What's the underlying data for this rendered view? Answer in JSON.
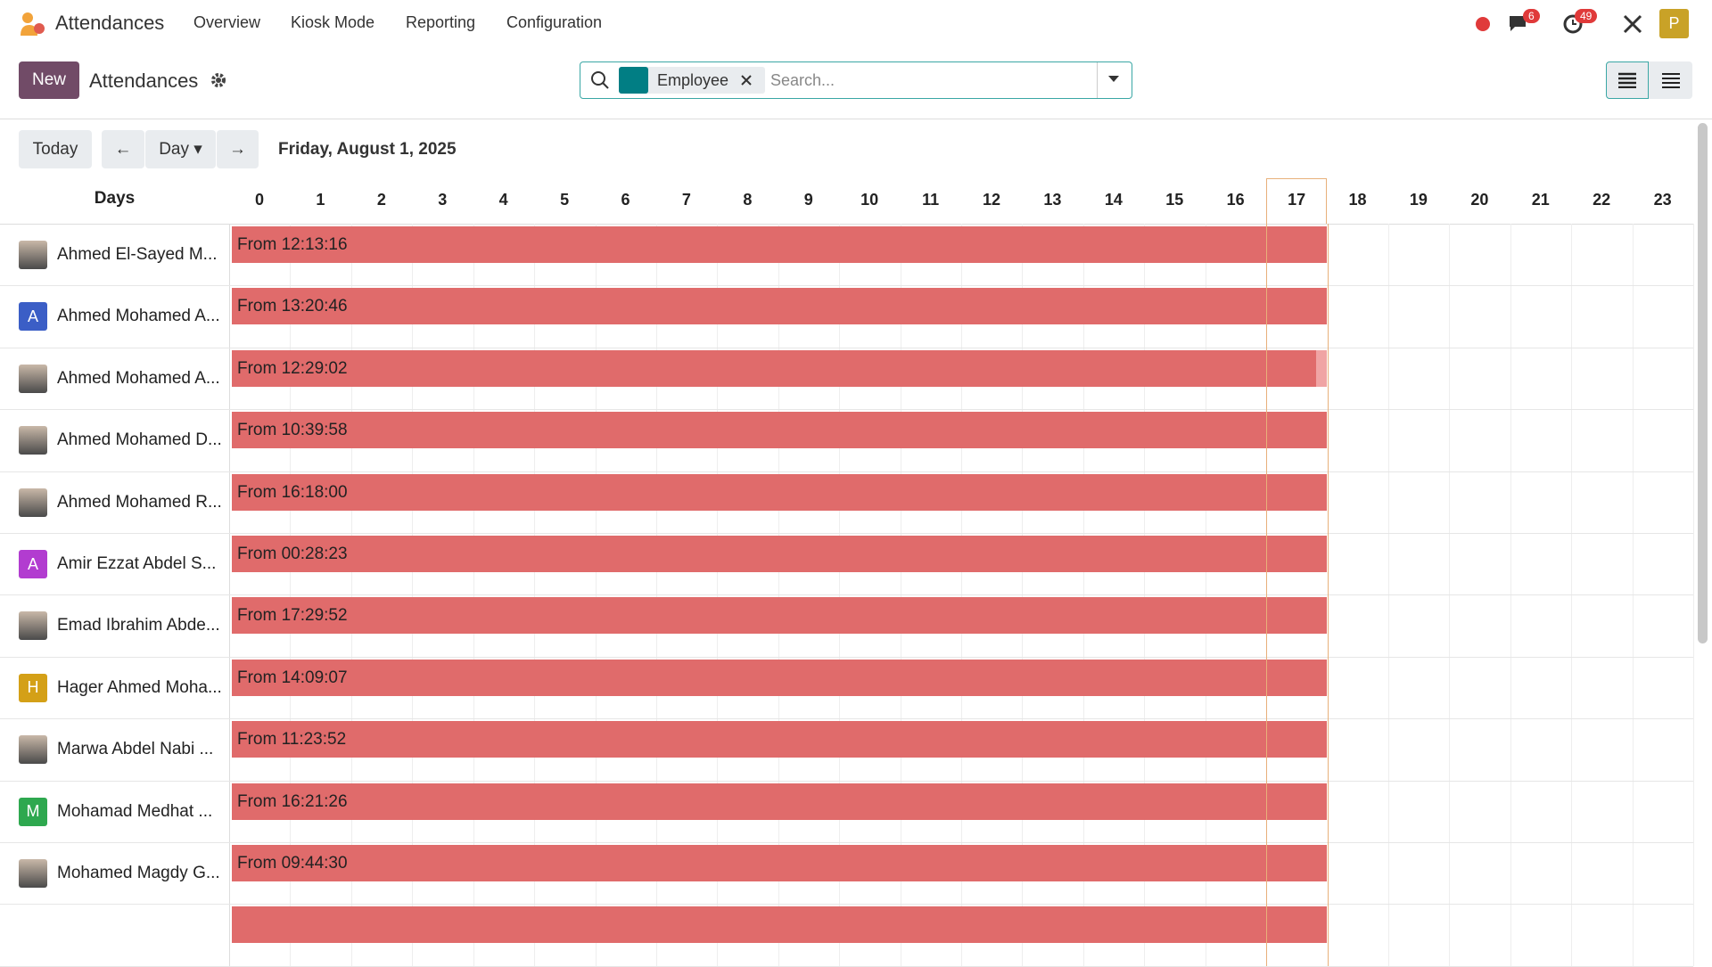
{
  "nav": {
    "app": "Attendances",
    "menu": [
      "Overview",
      "Kiosk Mode",
      "Reporting",
      "Configuration"
    ],
    "chat_badge": 6,
    "activity_badge": 49,
    "user_initial": "P"
  },
  "control": {
    "new": "New",
    "title": "Attendances",
    "facet": "Employee",
    "search_placeholder": "Search..."
  },
  "gantt": {
    "today": "Today",
    "scale": "Day",
    "date": "Friday, August 1, 2025",
    "rows_header": "Days",
    "hours": [
      0,
      1,
      2,
      3,
      4,
      5,
      6,
      7,
      8,
      9,
      10,
      11,
      12,
      13,
      14,
      15,
      16,
      17,
      18,
      19,
      20,
      21,
      22,
      23
    ],
    "rows": [
      {
        "name": "Ahmed El-Sayed M...",
        "label": "From 12:13:16"
      },
      {
        "name": "Ahmed Mohamed A...",
        "initial": "A",
        "label": "From 13:20:46"
      },
      {
        "name": "Ahmed Mohamed A...",
        "label": "From 12:29:02"
      },
      {
        "name": "Ahmed Mohamed D...",
        "label": "From 10:39:58"
      },
      {
        "name": "Ahmed Mohamed R...",
        "label": "From 16:18:00"
      },
      {
        "name": "Amir Ezzat Abdel S...",
        "initial": "A",
        "label": "From 00:28:23"
      },
      {
        "name": "Emad Ibrahim Abde...",
        "label": "From 17:29:52"
      },
      {
        "name": "Hager Ahmed Moha...",
        "initial": "H",
        "label": "From 14:09:07"
      },
      {
        "name": "Marwa Abdel Nabi ...",
        "label": "From 11:23:52"
      },
      {
        "name": "Mohamad Medhat ...",
        "initial": "M",
        "label": "From 16:21:26"
      },
      {
        "name": "Mohamed Magdy G...",
        "label": "From 09:44:30"
      }
    ]
  }
}
